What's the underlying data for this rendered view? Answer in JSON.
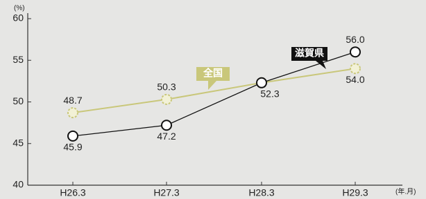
{
  "chart_data": {
    "type": "line",
    "y_label": "(%)",
    "x_label": "(年.月)",
    "categories": [
      "H26.3",
      "H27.3",
      "H28.3",
      "H29.3"
    ],
    "series": [
      {
        "name": "滋賀県",
        "color": "#111111",
        "values": [
          45.9,
          47.2,
          52.3,
          56.0
        ],
        "value_labels": [
          "45.9",
          "47.2",
          "52.3",
          "56.0"
        ]
      },
      {
        "name": "全国",
        "color": "#c9c77a",
        "values": [
          48.7,
          50.3,
          52.3,
          54.0
        ],
        "value_labels": [
          "48.7",
          "50.3",
          "52.3",
          "54.0"
        ]
      }
    ],
    "ylim": [
      40,
      60
    ],
    "yticks": [
      40,
      45,
      50,
      55,
      60
    ],
    "grid": false
  }
}
